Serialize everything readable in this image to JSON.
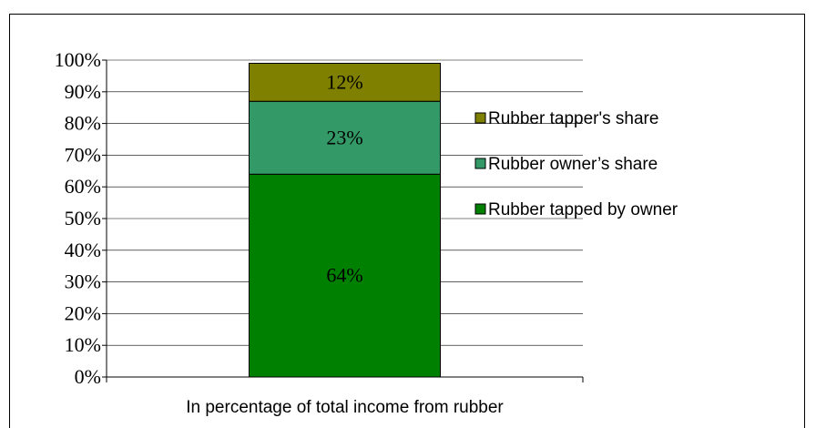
{
  "chart_data": {
    "type": "stacked_bar",
    "categories": [
      "In percentage of total income from rubber"
    ],
    "series": [
      {
        "name": "Rubber tapped by owner",
        "color": "#008000",
        "values": [
          64
        ],
        "value_labels": [
          "64%"
        ]
      },
      {
        "name": "Rubber owner’s share",
        "color": "#339966",
        "values": [
          23
        ],
        "value_labels": [
          "23%"
        ]
      },
      {
        "name": "Rubber tapper's share",
        "color": "#808000",
        "values": [
          12
        ],
        "value_labels": [
          "12%"
        ]
      }
    ],
    "ylim": [
      0,
      100
    ],
    "yticks": [
      {
        "value": 0,
        "label": "0%"
      },
      {
        "value": 10,
        "label": "10%"
      },
      {
        "value": 20,
        "label": "20%"
      },
      {
        "value": 30,
        "label": "30%"
      },
      {
        "value": 40,
        "label": "40%"
      },
      {
        "value": 50,
        "label": "50%"
      },
      {
        "value": 60,
        "label": "60%"
      },
      {
        "value": 70,
        "label": "70%"
      },
      {
        "value": 80,
        "label": "80%"
      },
      {
        "value": 90,
        "label": "90%"
      },
      {
        "value": 100,
        "label": "100%"
      }
    ],
    "grid": true,
    "legend": "right"
  }
}
